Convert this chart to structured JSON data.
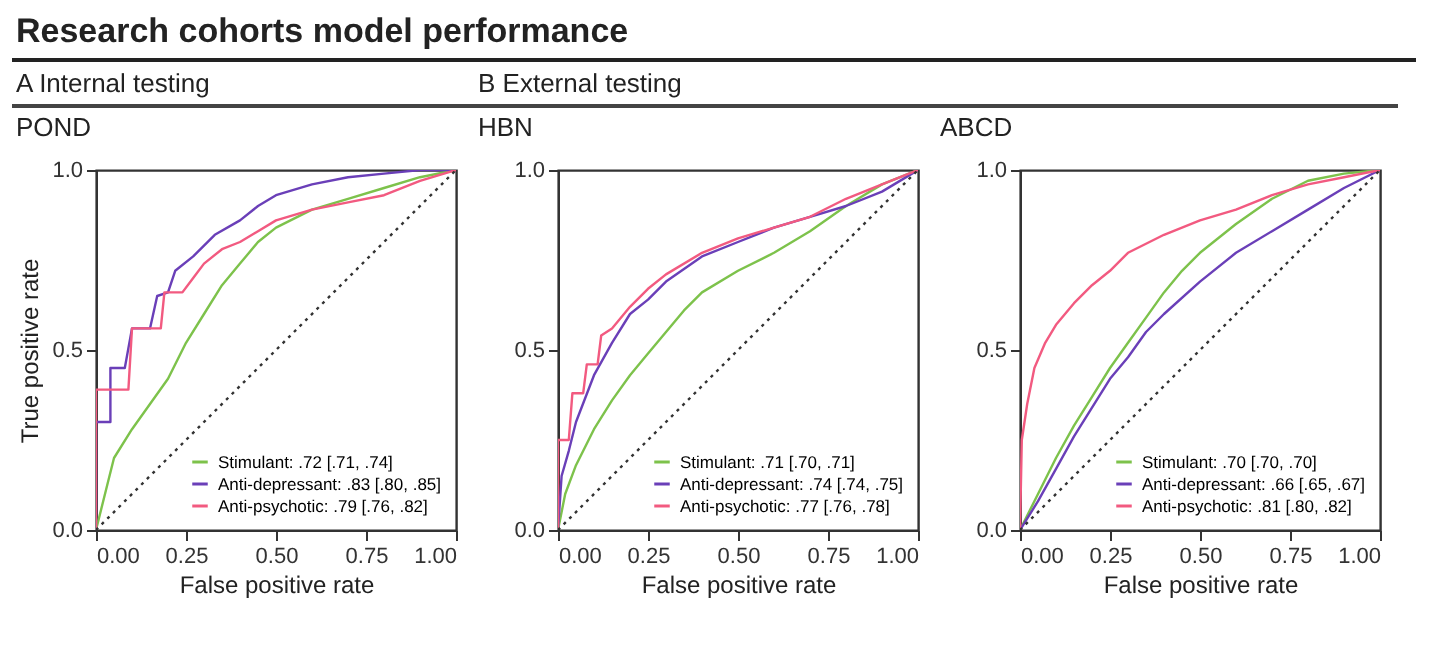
{
  "chart_data": [
    {
      "type": "line",
      "title": "POND",
      "xlabel": "False positive rate",
      "ylabel": "True positive rate",
      "annotations": [
        "Research cohorts model performance",
        "A  Internal testing"
      ],
      "xlim": [
        0,
        1
      ],
      "ylim": [
        0,
        1
      ],
      "xticks": [
        {
          "value": 0,
          "label": "0.00"
        },
        {
          "value": 0.25,
          "label": "0.25"
        },
        {
          "value": 0.5,
          "label": "0.50"
        },
        {
          "value": 0.75,
          "label": "0.75"
        },
        {
          "value": 1,
          "label": "1.00"
        }
      ],
      "yticks": [
        {
          "value": 0,
          "label": "0.0"
        },
        {
          "value": 0.5,
          "label": "0.5"
        },
        {
          "value": 1,
          "label": "1.0"
        }
      ],
      "grid": false,
      "legend": "bottom right",
      "series": [
        {
          "name": "Stimulant: .72 [.71, .74]",
          "color": "#7dc24b",
          "x": [
            0,
            0.03,
            0.05,
            0.1,
            0.15,
            0.2,
            0.25,
            0.3,
            0.35,
            0.4,
            0.45,
            0.5,
            0.6,
            0.7,
            0.8,
            0.9,
            1
          ],
          "values": [
            0,
            0.12,
            0.2,
            0.28,
            0.35,
            0.42,
            0.52,
            0.6,
            0.68,
            0.74,
            0.8,
            0.84,
            0.89,
            0.92,
            0.95,
            0.98,
            1
          ]
        },
        {
          "name": "Anti-depressant: .83 [.80, .85]",
          "color": "#6a3fb8",
          "x": [
            0,
            0,
            0.04,
            0.04,
            0.08,
            0.1,
            0.15,
            0.17,
            0.2,
            0.22,
            0.27,
            0.33,
            0.4,
            0.45,
            0.5,
            0.6,
            0.7,
            0.8,
            0.9,
            1
          ],
          "values": [
            0,
            0.3,
            0.3,
            0.45,
            0.45,
            0.56,
            0.56,
            0.65,
            0.66,
            0.72,
            0.76,
            0.82,
            0.86,
            0.9,
            0.93,
            0.96,
            0.98,
            0.99,
            1,
            1
          ]
        },
        {
          "name": "Anti-psychotic: .79 [.76, .82]",
          "color": "#f25a80",
          "x": [
            0,
            0,
            0.09,
            0.1,
            0.18,
            0.19,
            0.24,
            0.27,
            0.3,
            0.35,
            0.4,
            0.45,
            0.5,
            0.6,
            0.7,
            0.8,
            0.9,
            1
          ],
          "values": [
            0,
            0.39,
            0.39,
            0.56,
            0.56,
            0.66,
            0.66,
            0.7,
            0.74,
            0.78,
            0.8,
            0.83,
            0.86,
            0.89,
            0.91,
            0.93,
            0.97,
            1
          ]
        },
        {
          "color": "#333333",
          "line_style": "dotted",
          "x": [
            0,
            1
          ],
          "values": [
            0,
            1
          ]
        }
      ]
    },
    {
      "type": "line",
      "title": "HBN",
      "xlabel": "False positive rate",
      "annotations": [
        "B  External testing"
      ],
      "xlim": [
        0,
        1
      ],
      "ylim": [
        0,
        1
      ],
      "xticks": [
        {
          "value": 0,
          "label": "0.00"
        },
        {
          "value": 0.25,
          "label": "0.25"
        },
        {
          "value": 0.5,
          "label": "0.50"
        },
        {
          "value": 0.75,
          "label": "0.75"
        },
        {
          "value": 1,
          "label": "1.00"
        }
      ],
      "yticks": [
        {
          "value": 0,
          "label": "0.0"
        },
        {
          "value": 0.5,
          "label": "0.5"
        },
        {
          "value": 1,
          "label": "1.0"
        }
      ],
      "grid": false,
      "legend": "bottom right",
      "series": [
        {
          "name": "Stimulant: .71 [.70, .71]",
          "color": "#7dc24b",
          "x": [
            0,
            0.02,
            0.05,
            0.1,
            0.15,
            0.2,
            0.25,
            0.3,
            0.35,
            0.4,
            0.5,
            0.6,
            0.7,
            0.8,
            0.9,
            1
          ],
          "values": [
            0,
            0.1,
            0.18,
            0.28,
            0.36,
            0.43,
            0.49,
            0.55,
            0.61,
            0.66,
            0.72,
            0.77,
            0.83,
            0.9,
            0.96,
            1
          ]
        },
        {
          "name": "Anti-depressant: .74 [.74, .75]",
          "color": "#6a3fb8",
          "x": [
            0,
            0.01,
            0.03,
            0.05,
            0.1,
            0.15,
            0.2,
            0.25,
            0.3,
            0.4,
            0.5,
            0.6,
            0.7,
            0.8,
            0.9,
            1
          ],
          "values": [
            0,
            0.15,
            0.22,
            0.3,
            0.43,
            0.52,
            0.6,
            0.64,
            0.69,
            0.76,
            0.8,
            0.84,
            0.87,
            0.9,
            0.94,
            1
          ]
        },
        {
          "name": "Anti-psychotic: .77 [.76, .78]",
          "color": "#f25a80",
          "x": [
            0,
            0,
            0.03,
            0.04,
            0.07,
            0.08,
            0.11,
            0.12,
            0.15,
            0.2,
            0.25,
            0.3,
            0.4,
            0.5,
            0.6,
            0.7,
            0.8,
            0.9,
            1
          ],
          "values": [
            0,
            0.25,
            0.25,
            0.38,
            0.38,
            0.46,
            0.46,
            0.54,
            0.56,
            0.62,
            0.67,
            0.71,
            0.77,
            0.81,
            0.84,
            0.87,
            0.92,
            0.96,
            1
          ]
        },
        {
          "color": "#333333",
          "line_style": "dotted",
          "x": [
            0,
            1
          ],
          "values": [
            0,
            1
          ]
        }
      ]
    },
    {
      "type": "line",
      "title": "ABCD",
      "xlabel": "False positive rate",
      "xlim": [
        0,
        1
      ],
      "ylim": [
        0,
        1
      ],
      "xticks": [
        {
          "value": 0,
          "label": "0.00"
        },
        {
          "value": 0.25,
          "label": "0.25"
        },
        {
          "value": 0.5,
          "label": "0.50"
        },
        {
          "value": 0.75,
          "label": "0.75"
        },
        {
          "value": 1,
          "label": "1.00"
        }
      ],
      "yticks": [
        {
          "value": 0,
          "label": "0.0"
        },
        {
          "value": 0.5,
          "label": "0.5"
        },
        {
          "value": 1,
          "label": "1.0"
        }
      ],
      "grid": false,
      "legend": "bottom right",
      "series": [
        {
          "name": "Stimulant: .70 [.70, .70]",
          "color": "#7dc24b",
          "x": [
            0,
            0.05,
            0.1,
            0.15,
            0.2,
            0.25,
            0.3,
            0.35,
            0.4,
            0.45,
            0.5,
            0.6,
            0.7,
            0.8,
            0.9,
            1
          ],
          "values": [
            0,
            0.1,
            0.2,
            0.29,
            0.37,
            0.45,
            0.52,
            0.59,
            0.66,
            0.72,
            0.77,
            0.85,
            0.92,
            0.97,
            0.99,
            1
          ]
        },
        {
          "name": "Anti-depressant: .66 [.65, .67]",
          "color": "#6a3fb8",
          "x": [
            0,
            0.05,
            0.1,
            0.15,
            0.2,
            0.25,
            0.3,
            0.35,
            0.4,
            0.5,
            0.6,
            0.7,
            0.8,
            0.9,
            1
          ],
          "values": [
            0,
            0.08,
            0.17,
            0.26,
            0.34,
            0.42,
            0.48,
            0.55,
            0.6,
            0.69,
            0.77,
            0.83,
            0.89,
            0.95,
            1
          ]
        },
        {
          "name": "Anti-psychotic: .81 [.80, .82]",
          "color": "#f25a80",
          "x": [
            0,
            0.005,
            0.02,
            0.04,
            0.07,
            0.1,
            0.15,
            0.2,
            0.25,
            0.3,
            0.4,
            0.5,
            0.6,
            0.7,
            0.8,
            0.9,
            1
          ],
          "values": [
            0,
            0.25,
            0.35,
            0.45,
            0.52,
            0.57,
            0.63,
            0.68,
            0.72,
            0.77,
            0.82,
            0.86,
            0.89,
            0.93,
            0.96,
            0.98,
            1
          ]
        },
        {
          "color": "#333333",
          "line_style": "dotted",
          "x": [
            0,
            1
          ],
          "values": [
            0,
            1
          ]
        }
      ]
    }
  ]
}
